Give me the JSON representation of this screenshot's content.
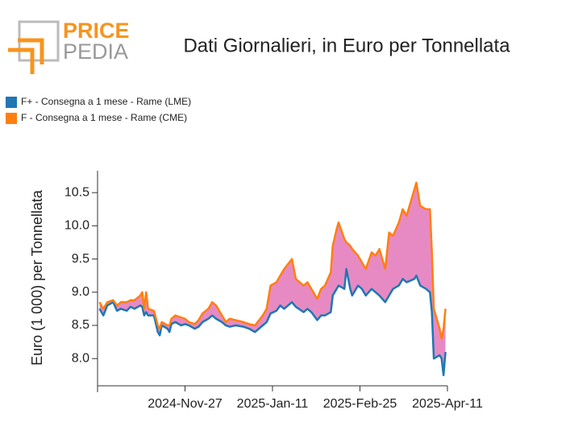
{
  "logo": {
    "line1": "PRICE",
    "line2": "PEDIA"
  },
  "chart_data": {
    "type": "area-between-lines",
    "title": "Dati Giornalieri, in Euro per Tonnellata",
    "y_label": "Euro (1 000) per Tonnellata",
    "x": [
      "2024-Oct-14",
      "2024-Oct-16",
      "2024-Oct-18",
      "2024-Oct-21",
      "2024-Oct-23",
      "2024-Oct-25",
      "2024-Oct-28",
      "2024-Oct-30",
      "2024-Nov-01",
      "2024-Nov-04",
      "2024-Nov-05",
      "2024-Nov-06",
      "2024-Nov-07",
      "2024-Nov-08",
      "2024-Nov-11",
      "2024-Nov-13",
      "2024-Nov-14",
      "2024-Nov-15",
      "2024-Nov-18",
      "2024-Nov-19",
      "2024-Nov-20",
      "2024-Nov-22",
      "2024-Nov-25",
      "2024-Nov-27",
      "2024-Nov-29",
      "2024-Dec-02",
      "2024-Dec-04",
      "2024-Dec-06",
      "2024-Dec-09",
      "2024-Dec-11",
      "2024-Dec-13",
      "2024-Dec-16",
      "2024-Dec-18",
      "2024-Dec-20",
      "2024-Dec-23",
      "2024-Dec-27",
      "2024-Dec-30",
      "2025-Jan-02",
      "2025-Jan-06",
      "2025-Jan-08",
      "2025-Jan-10",
      "2025-Jan-13",
      "2025-Jan-15",
      "2025-Jan-17",
      "2025-Jan-21",
      "2025-Jan-23",
      "2025-Jan-27",
      "2025-Jan-29",
      "2025-Jan-31",
      "2025-Feb-03",
      "2025-Feb-05",
      "2025-Feb-07",
      "2025-Feb-10",
      "2025-Feb-11",
      "2025-Feb-13",
      "2025-Feb-14",
      "2025-Feb-17",
      "2025-Feb-18",
      "2025-Feb-20",
      "2025-Feb-21",
      "2025-Feb-24",
      "2025-Feb-26",
      "2025-Feb-28",
      "2025-Mar-03",
      "2025-Mar-05",
      "2025-Mar-07",
      "2025-Mar-10",
      "2025-Mar-12",
      "2025-Mar-14",
      "2025-Mar-17",
      "2025-Mar-19",
      "2025-Mar-21",
      "2025-Mar-25",
      "2025-Mar-26",
      "2025-Mar-28",
      "2025-Mar-31",
      "2025-Apr-02",
      "2025-Apr-03",
      "2025-Apr-04",
      "2025-Apr-07",
      "2025-Apr-08",
      "2025-Apr-09",
      "2025-Apr-10"
    ],
    "series": [
      {
        "name": "F+ - Consegna a 1 mese - Rame (LME)",
        "color": "#1f77b4",
        "values": [
          8.75,
          8.65,
          8.8,
          8.85,
          8.72,
          8.75,
          8.72,
          8.78,
          8.75,
          8.8,
          8.78,
          8.65,
          8.7,
          8.65,
          8.65,
          8.4,
          8.35,
          8.5,
          8.45,
          8.4,
          8.52,
          8.55,
          8.5,
          8.52,
          8.5,
          8.45,
          8.48,
          8.55,
          8.6,
          8.65,
          8.6,
          8.55,
          8.5,
          8.48,
          8.5,
          8.48,
          8.45,
          8.4,
          8.5,
          8.55,
          8.68,
          8.72,
          8.8,
          8.75,
          8.85,
          8.78,
          8.7,
          8.75,
          8.7,
          8.58,
          8.65,
          8.65,
          8.7,
          8.95,
          9.05,
          9.1,
          9.05,
          9.35,
          9.05,
          8.95,
          9.1,
          9.05,
          8.95,
          9.05,
          9.0,
          8.95,
          8.85,
          8.95,
          9.05,
          9.1,
          9.2,
          9.15,
          9.2,
          9.25,
          9.1,
          9.05,
          9.0,
          8.7,
          8.0,
          8.05,
          8.0,
          7.75,
          8.1
        ]
      },
      {
        "name": "F - Consegna a 1 mese - Rame (CME)",
        "color": "#ff7f0e",
        "values": [
          8.85,
          8.75,
          8.85,
          8.88,
          8.8,
          8.85,
          8.85,
          8.88,
          8.88,
          8.95,
          9.0,
          8.75,
          9.0,
          8.75,
          8.72,
          8.5,
          8.45,
          8.55,
          8.5,
          8.5,
          8.6,
          8.65,
          8.62,
          8.6,
          8.55,
          8.52,
          8.58,
          8.68,
          8.75,
          8.85,
          8.8,
          8.65,
          8.55,
          8.6,
          8.58,
          8.55,
          8.52,
          8.5,
          8.65,
          8.75,
          9.1,
          9.15,
          9.25,
          9.35,
          9.5,
          9.2,
          9.1,
          9.15,
          9.05,
          8.9,
          9.05,
          9.1,
          9.3,
          9.7,
          9.95,
          10.05,
          9.8,
          9.75,
          9.7,
          9.65,
          9.55,
          9.45,
          9.35,
          9.6,
          9.55,
          9.65,
          9.35,
          9.9,
          9.85,
          10.05,
          10.25,
          10.15,
          10.55,
          10.65,
          10.3,
          10.25,
          10.25,
          9.6,
          8.75,
          8.45,
          8.3,
          8.45,
          8.75
        ]
      }
    ],
    "fill_color": "#e78ac3",
    "xlim": [
      "2024-Oct-13",
      "2025-Apr-11"
    ],
    "xticks": [
      "2024-Nov-27",
      "2025-Jan-11",
      "2025-Feb-25",
      "2025-Apr-11"
    ],
    "ylim": [
      7.59,
      10.83
    ],
    "yticks": [
      {
        "value": 8,
        "label": "8.0"
      },
      8.5,
      {
        "value": 9,
        "label": "9.0"
      },
      9.5,
      {
        "value": 10,
        "label": "10.0"
      },
      10.5
    ],
    "legend": "top-left"
  }
}
